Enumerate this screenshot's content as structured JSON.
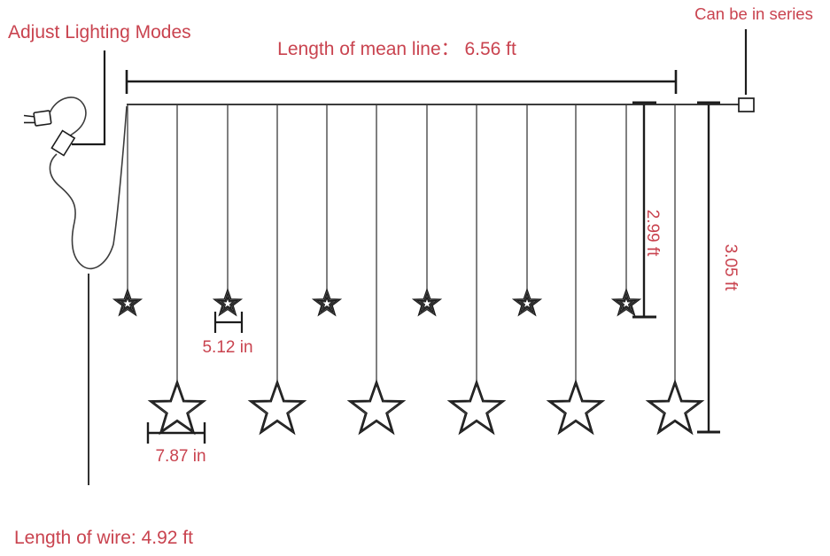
{
  "labels": {
    "adjust_lighting_modes": "Adjust Lighting Modes",
    "mean_line_length": "Length of mean line：  6.56 ft",
    "can_be_in_series": "Can be in series",
    "small_star_drop_length": "2.99 ft",
    "large_star_drop_length": "3.05 ft",
    "small_star_width": "5.12 in",
    "large_star_width": "7.87 in",
    "wire_length": "Length of wire: 4.92 ft"
  },
  "measurements": {
    "mean_line_ft": 6.56,
    "wire_ft": 4.92,
    "small_star_drop_ft": 2.99,
    "large_star_drop_ft": 3.05,
    "small_star_width_in": 5.12,
    "large_star_width_in": 7.87
  },
  "counts": {
    "small_stars": 6,
    "large_stars": 6
  },
  "icons": {
    "plug": "power-plug-icon",
    "controller": "lighting-mode-controller-icon",
    "connector": "series-connector-icon",
    "star": "star-outline-icon"
  },
  "colors": {
    "label_red": "#c9434f",
    "line_dark": "#1c1c1c"
  }
}
